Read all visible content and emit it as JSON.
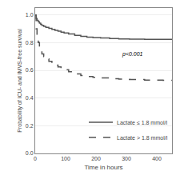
{
  "chart_data": {
    "type": "step",
    "xlabel": "Time in hours",
    "ylabel": "Probability of ICU- and IMVS-free survival",
    "xlim": [
      0,
      450
    ],
    "ylim": [
      0.0,
      1.05
    ],
    "xticks": [
      0,
      100,
      200,
      300,
      400
    ],
    "yticks": [
      {
        "value": 0.0,
        "label": "0.0"
      },
      0.2,
      0.4,
      0.6,
      0.8,
      {
        "value": 1.0,
        "label": "1.0"
      }
    ],
    "grid": "y",
    "legend": "lower right",
    "annotations": [
      {
        "text": "p<0.001",
        "x": 280,
        "y": 0.68
      }
    ],
    "series": [
      {
        "name": "Lactate ≤ 1.8 mmol/l",
        "color": "#555555",
        "line_style": "solid",
        "x": [
          0,
          3,
          6,
          10,
          14,
          18,
          22,
          28,
          35,
          45,
          55,
          65,
          75,
          85,
          95,
          110,
          130,
          150,
          170,
          190,
          215,
          245,
          275,
          310,
          360,
          420,
          450
        ],
        "values": [
          1.0,
          0.975,
          0.96,
          0.95,
          0.94,
          0.932,
          0.925,
          0.918,
          0.91,
          0.903,
          0.895,
          0.888,
          0.882,
          0.876,
          0.87,
          0.862,
          0.852,
          0.845,
          0.84,
          0.836,
          0.833,
          0.83,
          0.827,
          0.825,
          0.824,
          0.824,
          0.824
        ]
      },
      {
        "name": "Lactate > 1.8 mmol/l",
        "color": "#555555",
        "line_style": "dashed",
        "x": [
          0,
          3,
          6,
          10,
          14,
          18,
          22,
          28,
          35,
          45,
          55,
          65,
          75,
          85,
          95,
          110,
          130,
          150,
          170,
          190,
          215,
          245,
          275,
          310,
          360,
          420,
          450
        ],
        "values": [
          1.0,
          0.9,
          0.85,
          0.8,
          0.765,
          0.74,
          0.718,
          0.7,
          0.682,
          0.665,
          0.65,
          0.638,
          0.625,
          0.614,
          0.604,
          0.59,
          0.574,
          0.563,
          0.556,
          0.55,
          0.545,
          0.54,
          0.536,
          0.533,
          0.53,
          0.528,
          0.528
        ]
      }
    ]
  }
}
